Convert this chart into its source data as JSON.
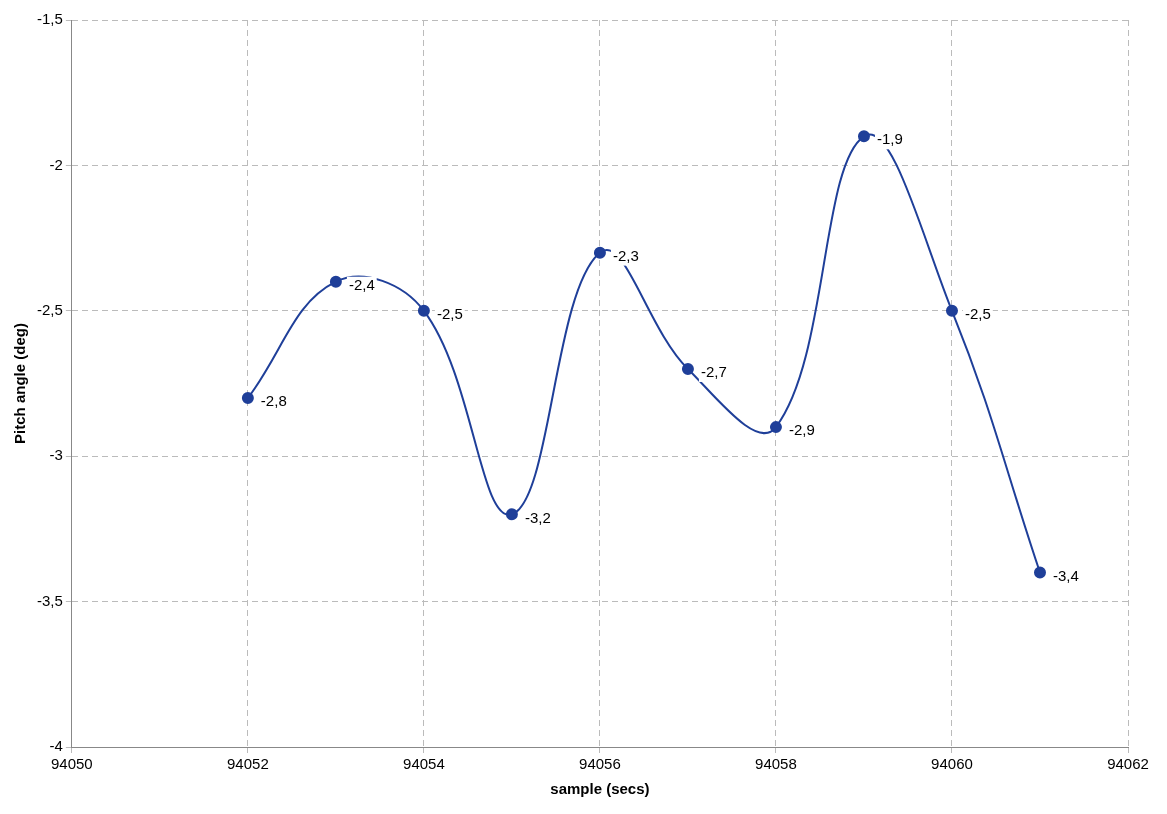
{
  "chart_data": {
    "type": "line",
    "xlabel": "sample (secs)",
    "ylabel": "Pitch angle (deg)",
    "x": [
      94052,
      94053,
      94054,
      94055,
      94056,
      94057,
      94058,
      94059,
      94060,
      94061
    ],
    "series": [
      {
        "color": "#1f3f99",
        "values": [
          -2.8,
          -2.4,
          -2.5,
          -3.2,
          -2.3,
          -2.7,
          -2.9,
          -1.9,
          -2.5,
          -3.4
        ],
        "value_labels": [
          "-2,8",
          "-2,4",
          "-2,5",
          "-3,2",
          "-2,3",
          "-2,7",
          "-2,9",
          "-1,9",
          "-2,5",
          "-3,4"
        ]
      }
    ],
    "xlim": [
      94050,
      94062
    ],
    "xticks": [
      94050,
      94052,
      94054,
      94056,
      94058,
      94060,
      94062
    ],
    "ylim": [
      -4,
      -1.5
    ],
    "yticks": [
      {
        "value": -4,
        "label": "-4"
      },
      {
        "value": -3.5,
        "label": "-3,5"
      },
      {
        "value": -3,
        "label": "-3"
      },
      {
        "value": -2.5,
        "label": "-2,5"
      },
      {
        "value": -2,
        "label": "-2"
      },
      {
        "value": -1.5,
        "label": "-1,5"
      }
    ],
    "grid": true,
    "legend": false,
    "marker": "circle",
    "line_style": "solid"
  }
}
